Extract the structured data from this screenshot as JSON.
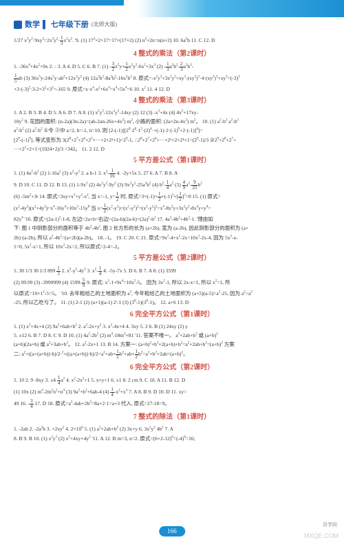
{
  "header": {
    "subject": "数学",
    "grade": "七年级下册",
    "version": "(北师大版)"
  },
  "sections": [
    {
      "title": "",
      "lines": [
        "1/27 x³y²·9xy²=2x³y²·(1/3)x²x². '9. (1) 17²×2×17=17×(17+2)  (2) n²+2n=n(n+2)  10. 6a²b  11. C  12. D"
      ]
    },
    {
      "title": "4  整式的乘法（第2课时）",
      "lines": [
        "1. -36x⁴+4x²+9x  2. -  3. A  4. D  5. C  6. B  7. (1) -(3/2)x²y+(1/2)x²y³-6x²+3x³  (2) -(1/3)a²b²-(2/3)a²b³-",
        "(1/5)ab  (3) 36x⁵y-24x⁵y·ab²+12x³y²  (4) 12a³b²-8a²b²-16x²b²  8. 原式=-x²y³+3x²y²+xy³-(xy²)³·4·(xy²)³+xy³=(-3)³",
        "+3·(-3)²·3-2×3²×3³=-165  9. 原式=x·x⁴-x²+6x⁴=x⁴+5x⁴=6  10. x²  11. 4  12. D"
      ]
    },
    {
      "title": "4  整式的乘法（第3课时）",
      "lines": [
        "1. A  2. B  3. B  4. D  5. A  6. D  7. A  8. (1) x²y²-12x²y³-14xy  (2) 12  (3) -x³+4x  (4) 4x²+17xy-",
        "10y²  9. 花园的面积: (n-2a)(3n-2a)=(ab-2an-26x+4x²) m², 小路的面积: (2a×2n-4x²) m²。  10. (1) a²-b²  a²-b²",
        "a²-b²  (2) a²-b²  ①令 ②中 a=2, b=-1, n=10, 则 [2-(-1)][2⁰·2⁸·1²·(2)⁴·+(-1)·2·(-1)⁹+2·(-1)]⁴]=",
        "[2⁹-(-1)⁹], 等式变形为 3(2⁸+2⁷+2⁶+2⁵+···+2+2¹+1)=2⁹-1, ∴2⁸+2⁷+2⁶+···+2¹+2+2¹+1=(2⁹-1)/3  ②2⁹+2⁸+2⁷+",
        "···+2²+2+1=(1024+2)/3 =342。 11. 2  12. D"
      ]
    },
    {
      "title": "5  平方差公式（第1课时）",
      "lines": [
        "1. (1) 4a²-b²  (2) 1-16a²  (3) x²-y²  2. a  b-1  3. x²-(1/16)  4. -2y+5x  5. 27  6. A  7. B  8. A",
        "9. D  10. C  11. D  12. B  13. (1) 1-9x²  (2) 4x²y²-9y²  (3) 9x²y²-25a²b²  (4) b²-(1/4)a²  (5) (4/9)a²-(9/25)b²",
        "(6) -5m²+3t  14. 原式=3xy+x³+y²-x², 当 x=-1, y=(1/2) 时, 原式=3×(-1)×(1/2)+(-1)³+[(1/2)]²=0  15. (1) 原式=",
        "(x²-4y²)(x²+4y²)=x⁴-16y⁴+10x³-15y⁸  当 x=(1/2)(x²-y²)=(x²-y²)²=(x²-y²)²=x⁴-8x²y+3x²y²-8x⁴y+y⁴=",
        "82y⁴  '16. 原式=(2a-1)²-1-8, 左边=2a+b=右边=(2a-b)(2a-b)=(2a)²-b²  17. 4a²-4b²+4b²-1. '理由如",
        "下: 图 1 中阴影部分的面积等于 4b²-4b², 图 2 长方形的长为 (a+2b), 宽为 (a-2b), 因此阴影部分的面积为 (a+",
        "2b)·(a-2b), 所以 a²-4b²=(a+2b)(a-2b)。 18. -1。 19. C  20. C  21. 原式=9x²-4+x²-2x=10x²-2x-4, 因为 5x²-x-",
        "1=0, 5x²-x=1, 所以 10x²-2x=2, 所以原式=2-4=-2。"
      ]
    },
    {
      "title": "5  平方差公式（第2课时）",
      "lines": [
        "1. 30  1/3  30  1/3  899  (1/3)  2. x²-y²-4y²  3. x²-(1/4)  4. -5y-7x  5. D  6. B  7. A  8. (1) 3599",
        "(2) 99.99  (3) -3999999  (4) 1599-(5/9)  9. 原式: x²-1+9x⁴=10x²-5。 因为 3x²-1, 所以 2x-x=1, 所以 x²=1, 所",
        "以原式=10×1²-5=5。 '10. 去年租给乙的土地面积为 a², 今年租给乙的土地面积为 (a+5)(a-5)=a²-25, 因为 a²>a²",
        "-25, 所以乙吃亏了。 11. (1) 2-1 (2) (a+1)(a-1)  2'-1  (3) (3⁸-1)(3⁸-1)。 12. a+6  13. D"
      ]
    },
    {
      "title": "6  完全平方公式（第1课时）",
      "lines": [
        "1. (1) x²+4x+4  (2) 9a²+6ab+b²  2. a²-2x+y²  3. x²-4x+4  4. 3xy  5. 2  6. B  (1) 24xy  (2) y",
        "5. ±12  6. B  7. D  8. C  9. D  10. (1) 4a²-2b²  (2) m⁴-18m²+81  '11. 答案不唯一。 a²+2ab+b² 或 (a+b)²",
        "(a+b)(2a+b)  或 a²+3ab+b²。 12. a²-2x+1  13. B  14. 方案一: (a+b)²+b²+2(a+b)+b²=a²+2ab+b²=(a+b)²  方案",
        "二: a²+((a+(a+b))·b)/2·²+((a+(a+b))·b)/2=a²+ab+(1/2)b²+ab+(1/2)b²=a²+b²+2ab=(a+b)²。"
      ]
    },
    {
      "title": "6  完全平方公式（第2课时）",
      "lines": [
        "1. 10  2. 9  -8xy  3. ±4  (1/4)a²  4. x²-2x²+1  5. x+y+1  6. ±1  8. 2 cm  9. C  10. A  11. B  12. D",
        "(1) 10x  (2) m⁴-2m²n²+n⁴  (3) 9a²+b²+6ab-4  (4) (1/4)-x²+x⁴  7. A  8. B  9. D  10. D  11. xy=",
        "49  16. -(3/4)  17. D  18. 原式=a²-4ab+2b²=8a+2·1=a+3 代入, 原式=27-18=9。"
      ]
    },
    {
      "title": "7  整式的除法（第1课时）",
      "lines": [
        "1. -2ab  2. -2a²b  3. +2xy²  4. 2×10⁶  5. (1) a²+2ab+b²  (2) 3x+y  6. 3x²y²  4b²  7. A",
        "8. B  9. B  10. (1) x²y²  (2) x²+4xy+4y²  '11. A  12. B  m=3, n=2. 原式=(6+2-12)⁶=(-4)⁶=16;"
      ]
    }
  ],
  "pageNumber": "166",
  "watermark": "MXQE.COM",
  "wmLogo": "背学网",
  "colors": {
    "blue": "#1a8fd4",
    "darkBlue": "#1a5fb4",
    "red": "#d4554a",
    "text": "#333333"
  }
}
